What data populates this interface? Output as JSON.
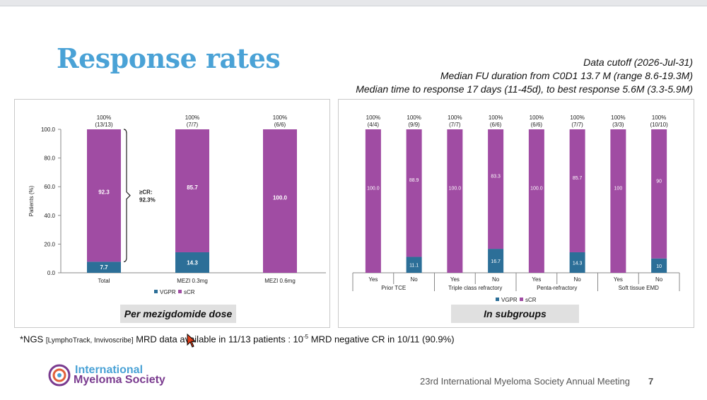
{
  "title": "Response rates",
  "info_lines": [
    "Data cutoff (2026-Jul-31)",
    "Median FU duration from C0D1 13.7 M (range 8.6-19.3M)",
    "Median time to response 17 days (11-45d), to best response 5.6M (3.3-5.9M)"
  ],
  "colors": {
    "vgpr": "#2c6f98",
    "scr": "#a04ca3",
    "title": "#4aa2d6"
  },
  "chart_data": [
    {
      "type": "bar",
      "stacked": true,
      "categories": [
        "Total",
        "MEZI 0.3mg",
        "MEZI 0.6mg"
      ],
      "series": [
        {
          "name": "VGPR",
          "values": [
            7.7,
            14.3,
            0
          ],
          "labels": [
            "7.7",
            "14.3",
            ""
          ]
        },
        {
          "name": "sCR",
          "values": [
            92.3,
            85.7,
            100.0
          ],
          "labels": [
            "92.3",
            "85.7",
            "100.0"
          ]
        }
      ],
      "top_labels": [
        [
          "100%",
          "(13/13)"
        ],
        [
          "100%",
          "(7/7)"
        ],
        [
          "100%",
          "(6/6)"
        ]
      ],
      "ylabel": "Patients (%)",
      "ylim": [
        0,
        100
      ],
      "yticks": [
        "0.0",
        "20.0",
        "40.0",
        "60.0",
        "80.0",
        "100.0"
      ],
      "annotation": [
        "≥CR:",
        "92.3%"
      ],
      "legend": [
        "VGPR",
        "sCR"
      ],
      "legend_position": "bottom",
      "caption": "Per  mezigdomide dose"
    },
    {
      "type": "bar",
      "stacked": true,
      "categories": [
        "Yes",
        "No",
        "Yes",
        "No",
        "Yes",
        "No",
        "Yes",
        "No"
      ],
      "groups": [
        "Prior TCE",
        "Triple class refractory",
        "Penta-refractory",
        "Soft tissue EMD"
      ],
      "series": [
        {
          "name": "VGPR",
          "values": [
            0,
            11.1,
            0,
            16.7,
            0,
            14.3,
            0,
            10
          ],
          "labels": [
            "",
            "11.1",
            "",
            "16.7",
            "",
            "14.3",
            "",
            "10"
          ]
        },
        {
          "name": "sCR",
          "values": [
            100.0,
            88.9,
            100.0,
            83.3,
            100.0,
            85.7,
            100,
            90
          ],
          "labels": [
            "100.0",
            "88.9",
            "100.0",
            "83.3",
            "100.0",
            "85.7",
            "100",
            "90"
          ]
        }
      ],
      "top_labels": [
        [
          "100%",
          "(4/4)"
        ],
        [
          "100%",
          "(9/9)"
        ],
        [
          "100%",
          "(7/7)"
        ],
        [
          "100%",
          "(6/6)"
        ],
        [
          "100%",
          "(6/6)"
        ],
        [
          "100%",
          "(7/7)"
        ],
        [
          "100%",
          "(3/3)"
        ],
        [
          "100%",
          "(10/10)"
        ]
      ],
      "ylim": [
        0,
        100
      ],
      "legend": [
        "VGPR",
        "sCR"
      ],
      "legend_position": "bottom",
      "caption": "In subgroups"
    }
  ],
  "footnote": {
    "prefix": "*NGS ",
    "small": "[LymphoTrack, Invivoscribe]",
    "middle": " MRD data available in 11/13 patients : 10",
    "sup": "-5",
    "suffix": " MRD negative CR in 10/11 (90.9%)"
  },
  "logo": {
    "line1": "International",
    "line2": "Myeloma Society"
  },
  "footer": {
    "meeting": "23rd International Myeloma Society Annual Meeting",
    "page": "7"
  }
}
